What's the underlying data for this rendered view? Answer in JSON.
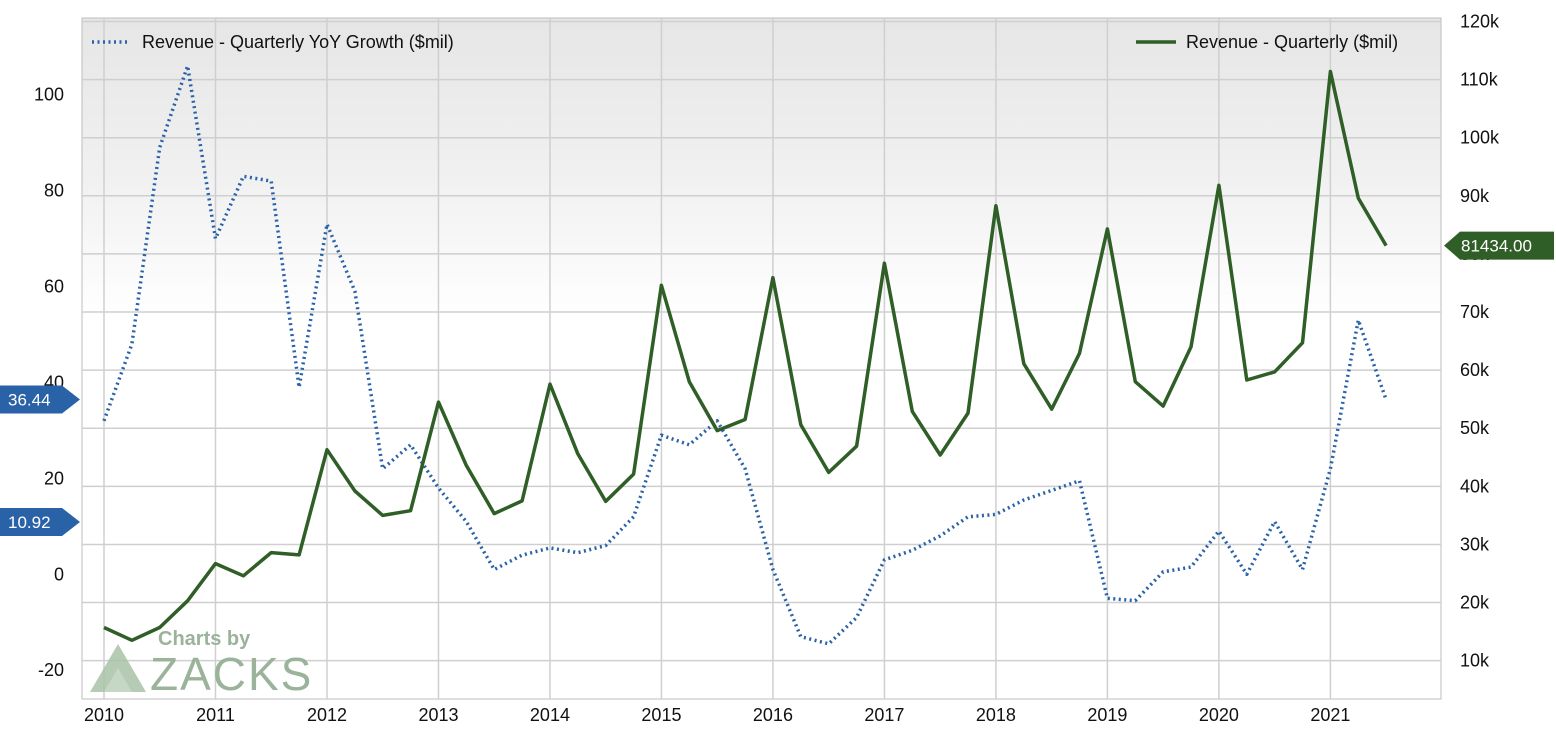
{
  "chart_data": {
    "type": "line",
    "colors": {
      "growth": "#2a62a8",
      "revenue": "#2f5e27",
      "grid": "#cfcfcf",
      "band": "#ebebeb",
      "frame": "#bdbdbd"
    },
    "x_ticks": [
      "2010",
      "2011",
      "2012",
      "2013",
      "2014",
      "2015",
      "2016",
      "2017",
      "2018",
      "2019",
      "2020",
      "2021"
    ],
    "xlim": [
      2010,
      2021.75
    ],
    "y_left": {
      "ticks": [
        -20,
        0,
        20,
        40,
        60,
        80,
        100
      ],
      "ylim": [
        -26,
        116
      ]
    },
    "y_right": {
      "ticks": [
        "10k",
        "20k",
        "30k",
        "40k",
        "50k",
        "60k",
        "70k",
        "80k",
        "90k",
        "100k",
        "110k",
        "120k"
      ],
      "ticks_values": [
        10000,
        20000,
        30000,
        40000,
        50000,
        60000,
        70000,
        80000,
        90000,
        100000,
        110000,
        120000
      ],
      "ylim": [
        3400,
        120600
      ]
    },
    "series": [
      {
        "name": "Revenue - Quarterly YoY Growth ($mil)",
        "style": "dotted",
        "axis": "left",
        "x": [
          2010,
          2010.25,
          2010.5,
          2010.75,
          2011,
          2011.25,
          2011.5,
          2011.75,
          2012,
          2012.25,
          2012.5,
          2012.75,
          2013,
          2013.25,
          2013.5,
          2013.75,
          2014,
          2014.25,
          2014.5,
          2014.75,
          2015,
          2015.25,
          2015.5,
          2015.75,
          2016,
          2016.25,
          2016.5,
          2016.75,
          2017,
          2017.25,
          2017.5,
          2017.75,
          2018,
          2018.25,
          2018.5,
          2018.75,
          2019,
          2019.25,
          2019.5,
          2019.75,
          2020,
          2020.25,
          2020.5,
          2020.75,
          2021,
          2021.25,
          2021.5
        ],
        "values": [
          32,
          48,
          89,
          106,
          70,
          83,
          82,
          39,
          73,
          59,
          22,
          27,
          18,
          11,
          1,
          4,
          5.5,
          4.5,
          6,
          12,
          29,
          27,
          32,
          22,
          1,
          -13,
          -14.5,
          -9,
          3,
          5,
          8,
          12,
          12.5,
          15.5,
          17.5,
          19.5,
          -5,
          -5.5,
          0.5,
          1.5,
          9,
          0,
          11,
          1,
          22,
          53,
          36.44
        ]
      },
      {
        "name": "Revenue - Quarterly ($mil)",
        "style": "solid",
        "axis": "right",
        "x": [
          2010,
          2010.25,
          2010.5,
          2010.75,
          2011,
          2011.25,
          2011.5,
          2011.75,
          2012,
          2012.25,
          2012.5,
          2012.75,
          2013,
          2013.25,
          2013.5,
          2013.75,
          2014,
          2014.25,
          2014.5,
          2014.75,
          2015,
          2015.25,
          2015.5,
          2015.75,
          2016,
          2016.25,
          2016.5,
          2016.75,
          2017,
          2017.25,
          2017.5,
          2017.75,
          2018,
          2018.25,
          2018.5,
          2018.75,
          2019,
          2019.25,
          2019.5,
          2019.75,
          2020,
          2020.25,
          2020.5,
          2020.75,
          2021,
          2021.25,
          2021.5
        ],
        "values": [
          15700,
          13500,
          15700,
          20300,
          26700,
          24600,
          28600,
          28200,
          46300,
          39200,
          35000,
          35800,
          54500,
          43600,
          35300,
          37500,
          57600,
          45600,
          37400,
          42100,
          74600,
          58000,
          49600,
          51500,
          75900,
          50600,
          42400,
          46900,
          78400,
          52900,
          45400,
          52600,
          88300,
          61100,
          53300,
          62900,
          84300,
          58000,
          53800,
          64000,
          91800,
          58300,
          59700,
          64700,
          111400,
          89600,
          81434
        ]
      }
    ],
    "last_value_labels": {
      "growth_current": "36.44",
      "growth_other": "10.92",
      "revenue_current": "81434.00"
    },
    "watermark": {
      "line1": "Charts by",
      "line2": "ZACKS"
    },
    "legend": {
      "placement": "top"
    }
  }
}
